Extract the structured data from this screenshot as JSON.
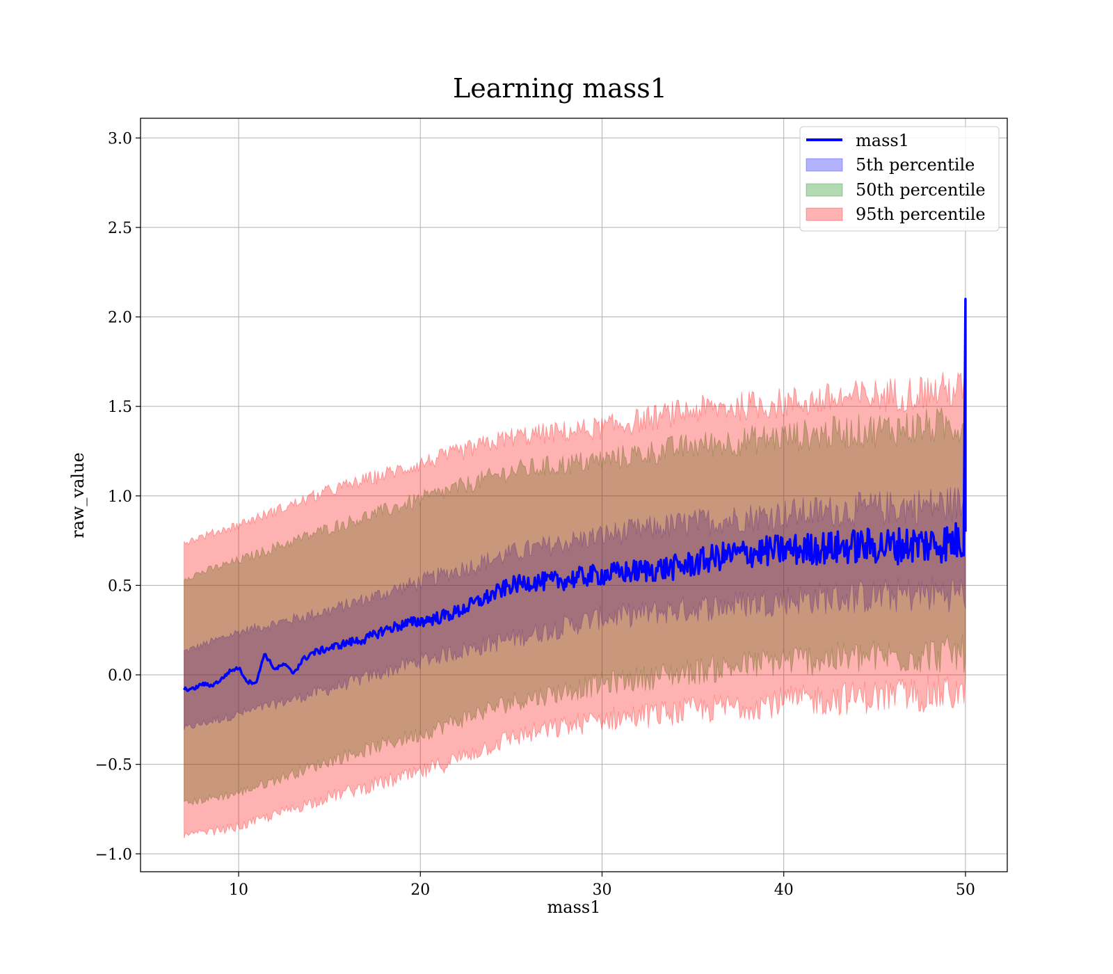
{
  "chart_data": {
    "type": "line",
    "title": "Learning mass1",
    "xlabel": "mass1",
    "ylabel": "raw_value",
    "xlim": [
      4.6,
      52.3
    ],
    "ylim": [
      -1.1,
      3.11
    ],
    "xticks": [
      10,
      20,
      30,
      40,
      50
    ],
    "xtick_labels": [
      "10",
      "20",
      "30",
      "40",
      "50"
    ],
    "yticks": [
      -1.0,
      -0.5,
      0.0,
      0.5,
      1.0,
      1.5,
      2.0,
      2.5,
      3.0
    ],
    "ytick_labels": [
      "−1.0",
      "−0.5",
      "0.0",
      "0.5",
      "1.0",
      "1.5",
      "2.0",
      "2.5",
      "3.0"
    ],
    "grid": true,
    "legend_position": "top-right",
    "colors": {
      "line": "#0000ff",
      "band_5": "#0000ff",
      "band_50": "#008000",
      "band_95": "#ff0000"
    },
    "series": [
      {
        "name": "mass1",
        "kind": "line",
        "x": [
          7.0,
          7.5,
          8.0,
          8.5,
          9.0,
          9.5,
          10.0,
          10.5,
          11.0,
          11.4,
          12.0,
          12.5,
          13.0,
          13.5,
          14.0,
          15.0,
          16.0,
          17.0,
          18.0,
          19.0,
          20.0,
          21.0,
          22.0,
          23.0,
          24.0,
          25.0,
          26.0,
          27.0,
          28.0,
          29.0,
          30.0,
          31.0,
          32.0,
          33.0,
          34.0,
          35.0,
          36.0,
          37.0,
          38.0,
          39.0,
          40.0,
          41.0,
          42.0,
          43.0,
          44.0,
          45.0,
          46.0,
          47.0,
          48.0,
          49.0,
          49.9,
          50.0,
          50.0
        ],
        "y": [
          -0.08,
          -0.08,
          -0.05,
          -0.06,
          -0.03,
          0.02,
          0.04,
          -0.04,
          -0.04,
          0.12,
          0.03,
          0.06,
          0.01,
          0.08,
          0.12,
          0.15,
          0.18,
          0.2,
          0.25,
          0.28,
          0.3,
          0.32,
          0.35,
          0.4,
          0.45,
          0.5,
          0.52,
          0.52,
          0.53,
          0.55,
          0.56,
          0.57,
          0.58,
          0.59,
          0.6,
          0.62,
          0.65,
          0.67,
          0.68,
          0.69,
          0.7,
          0.7,
          0.71,
          0.71,
          0.72,
          0.72,
          0.72,
          0.73,
          0.73,
          0.74,
          0.75,
          2.1,
          0.8
        ]
      },
      {
        "name": "5th percentile",
        "kind": "band",
        "x": [
          7.0,
          10.0,
          15.0,
          20.0,
          25.0,
          30.0,
          35.0,
          40.0,
          45.0,
          50.0
        ],
        "lower": [
          -0.3,
          -0.22,
          -0.08,
          0.08,
          0.2,
          0.32,
          0.37,
          0.42,
          0.44,
          0.46
        ],
        "upper": [
          0.13,
          0.24,
          0.36,
          0.52,
          0.68,
          0.78,
          0.85,
          0.9,
          0.93,
          0.96
        ]
      },
      {
        "name": "50th percentile",
        "kind": "band",
        "x": [
          7.0,
          10.0,
          15.0,
          20.0,
          25.0,
          30.0,
          35.0,
          40.0,
          45.0,
          50.0
        ],
        "lower": [
          -0.72,
          -0.66,
          -0.48,
          -0.33,
          -0.15,
          -0.05,
          0.02,
          0.08,
          0.1,
          0.12
        ],
        "upper": [
          0.54,
          0.64,
          0.82,
          0.98,
          1.14,
          1.2,
          1.28,
          1.33,
          1.37,
          1.4
        ]
      },
      {
        "name": "95th percentile",
        "kind": "band",
        "x": [
          7.0,
          10.0,
          15.0,
          20.0,
          25.0,
          30.0,
          35.0,
          40.0,
          45.0,
          50.0
        ],
        "lower": [
          -0.9,
          -0.85,
          -0.68,
          -0.55,
          -0.35,
          -0.25,
          -0.2,
          -0.15,
          -0.12,
          -0.1
        ],
        "upper": [
          0.74,
          0.84,
          1.03,
          1.18,
          1.33,
          1.38,
          1.48,
          1.52,
          1.56,
          1.6
        ]
      }
    ]
  }
}
